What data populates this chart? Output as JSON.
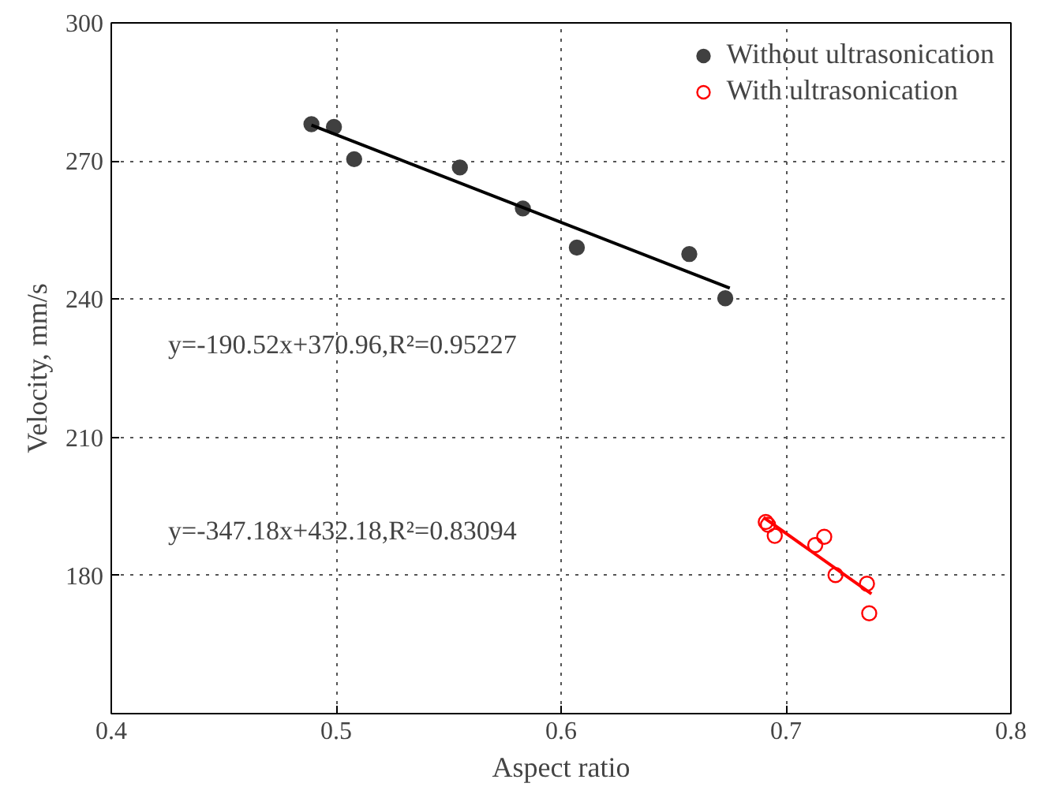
{
  "chart_data": {
    "type": "scatter",
    "xlabel": "Aspect ratio",
    "ylabel": "Velocity, mm/s",
    "xlim": [
      0.4,
      0.8
    ],
    "xticks": [
      0.4,
      0.5,
      0.6,
      0.7,
      0.8
    ],
    "ylim": [
      150,
      300
    ],
    "yticks": [
      180,
      210,
      240,
      270,
      300
    ],
    "grid": true,
    "legend": "top right",
    "series": [
      {
        "name": "Without ultrasonication",
        "color": "#404040",
        "marker": "circle",
        "x": [
          0.489,
          0.499,
          0.508,
          0.555,
          0.583,
          0.607,
          0.657,
          0.673
        ],
        "values": [
          278,
          277.4,
          270.4,
          268.6,
          259.7,
          251.2,
          249.8,
          240.2
        ]
      },
      {
        "name": "With ultrasonication",
        "color": "#ff0000",
        "marker": "circle_open",
        "x": [
          0.691,
          0.692,
          0.695,
          0.713,
          0.717,
          0.722,
          0.736,
          0.737
        ],
        "values": [
          191.6,
          191,
          188.6,
          186.6,
          188.4,
          180.1,
          178.2,
          171.8
        ]
      },
      {
        "type": "line",
        "color": "#000000",
        "x": [
          0.489,
          0.675
        ],
        "values": [
          277.8,
          242.4
        ]
      },
      {
        "type": "line",
        "color": "#ff0000",
        "x": [
          0.69,
          0.738
        ],
        "values": [
          192.6,
          176.0
        ]
      }
    ],
    "annotations": [
      "y=-190.52x+370.96,R²=0.95227",
      "y=-347.18x+432.18,R²=0.83094"
    ]
  }
}
